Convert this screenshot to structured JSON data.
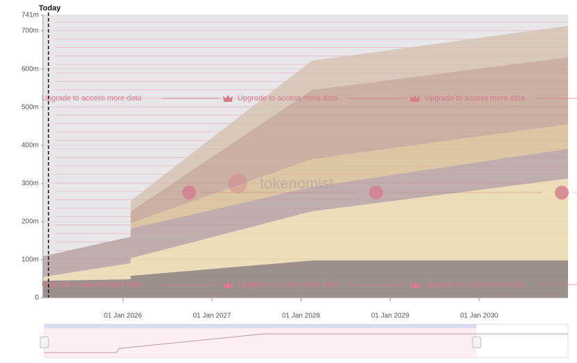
{
  "chart_data": {
    "type": "stacked-area",
    "today_label": "Today",
    "notice": "Upgrade to access more data",
    "watermark": "tokenomist",
    "x": [
      "2025-02-07",
      "2026-02-01",
      "2026-02-02",
      "2028-02-15",
      "2030-12-31"
    ],
    "xlim": [
      "2025-02-07",
      "2030-12-31"
    ],
    "xticks": [
      {
        "value": "2026-01-01",
        "label": "01 Jan 2026"
      },
      {
        "value": "2027-01-01",
        "label": "01 Jan 2027"
      },
      {
        "value": "2028-01-01",
        "label": "01 Jan 2028"
      },
      {
        "value": "2029-01-01",
        "label": "01 Jan 2029"
      },
      {
        "value": "2030-01-01",
        "label": "01 Jan 2030"
      }
    ],
    "ylim": [
      0,
      741
    ],
    "yticks": [
      0,
      {
        "value": 100,
        "label": "100m"
      },
      {
        "value": 200,
        "label": "200m"
      },
      {
        "value": 300,
        "label": "300m"
      },
      {
        "value": 400,
        "label": "400m"
      },
      {
        "value": 500,
        "label": "500m"
      },
      {
        "value": 600,
        "label": "600m"
      },
      {
        "value": 700,
        "label": "700m"
      },
      {
        "value": 741,
        "label": "741m"
      }
    ],
    "grid": true,
    "series": [
      {
        "color": "#8e807c",
        "values": [
          45,
          49,
          58,
          98,
          98
        ]
      },
      {
        "color": "#ecdcb2",
        "values": [
          10,
          42,
          46,
          129,
          215
        ]
      },
      {
        "color": "#b9a2a2",
        "values": [
          54,
          69,
          78,
          64,
          78
        ]
      },
      {
        "color": "#d9c096",
        "values": [
          0,
          0,
          14,
          73,
          64
        ]
      },
      {
        "color": "#c5a696",
        "values": [
          0,
          0,
          31,
          181,
          176
        ]
      },
      {
        "color": "#d6c2b4",
        "values": [
          0,
          0,
          28,
          77,
          82
        ]
      }
    ]
  }
}
